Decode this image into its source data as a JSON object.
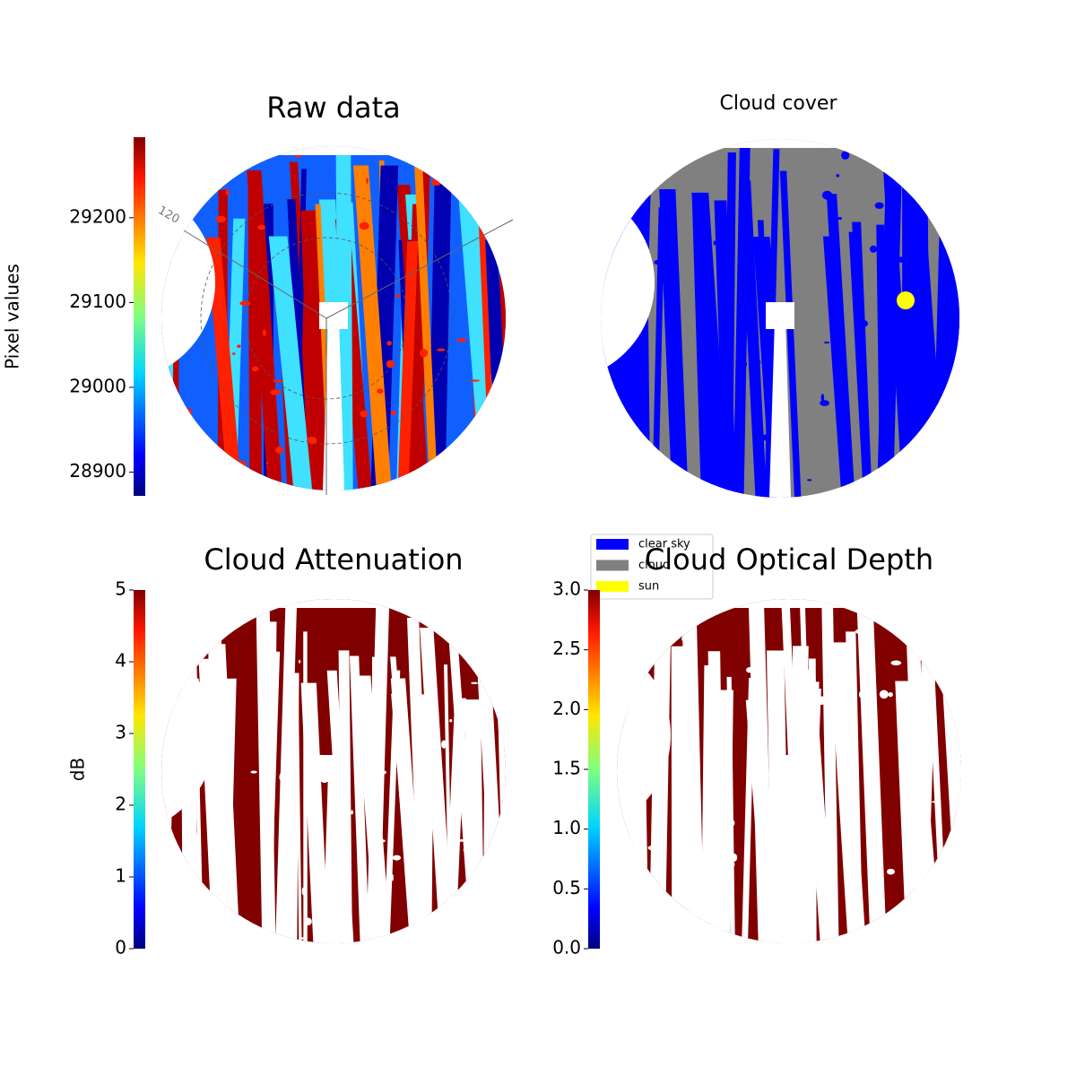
{
  "chart_data": [
    {
      "type": "image",
      "title": "Raw data",
      "colormap": "jet",
      "colorbar": {
        "label": "Pixel values",
        "lim": [
          28872,
          29295
        ],
        "ticks": [
          28900,
          29000,
          29100,
          29200
        ]
      },
      "annotations": [
        "120"
      ]
    },
    {
      "type": "image",
      "title": "Cloud cover",
      "legend": {
        "entries": [
          {
            "name": "clear sky",
            "color": "#0000ff"
          },
          {
            "name": "cloud",
            "color": "#808080"
          },
          {
            "name": "sun",
            "color": "#ffff00"
          }
        ]
      }
    },
    {
      "type": "image",
      "title": "Cloud Attenuation",
      "colormap": "jet",
      "colorbar": {
        "label": "dB",
        "lim": [
          0,
          5
        ],
        "ticks": [
          0,
          1,
          2,
          3,
          4,
          5
        ]
      }
    },
    {
      "type": "image",
      "title": "Cloud Optical Depth",
      "colormap": "jet",
      "colorbar": {
        "lim": [
          0,
          3
        ],
        "ticks": [
          {
            "value": 0,
            "label": "0.0"
          },
          {
            "value": 0.5,
            "label": "0.5"
          },
          {
            "value": 1,
            "label": "1.0"
          },
          {
            "value": 1.5,
            "label": "1.5"
          },
          {
            "value": 2,
            "label": "2.0"
          },
          {
            "value": 2.5,
            "label": "2.5"
          },
          {
            "value": 3,
            "label": "3.0"
          }
        ]
      }
    }
  ]
}
